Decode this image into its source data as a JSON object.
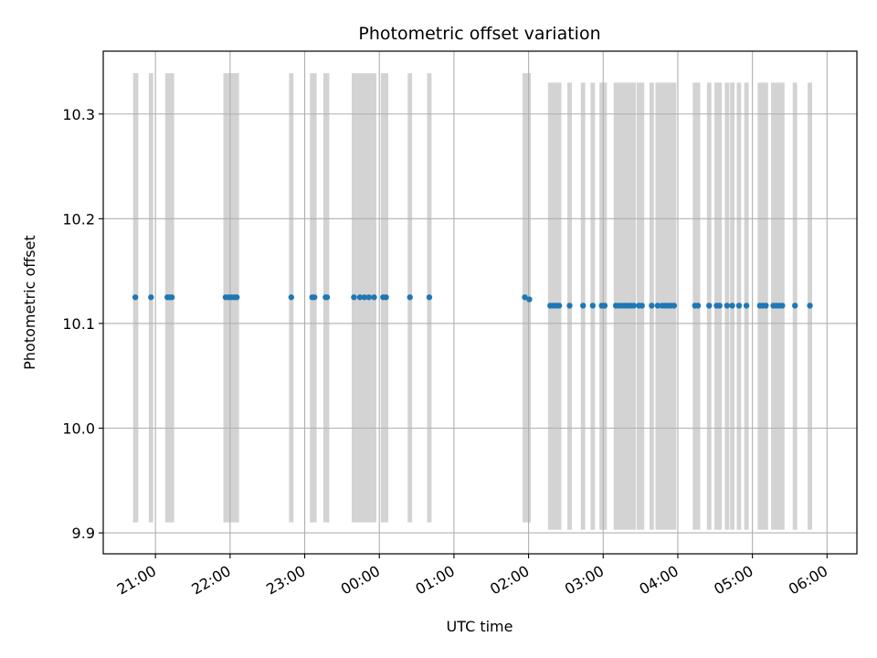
{
  "chart_data": {
    "type": "scatter",
    "title": "Photometric offset variation",
    "xlabel": "UTC time",
    "ylabel": "Photometric offset",
    "x_unit": "hours since 20:00 UTC",
    "xlim": [
      0.3,
      10.4
    ],
    "ylim": [
      9.88,
      10.36
    ],
    "grid": true,
    "x_ticks": [
      {
        "value": 1,
        "label": "21:00"
      },
      {
        "value": 2,
        "label": "22:00"
      },
      {
        "value": 3,
        "label": "23:00"
      },
      {
        "value": 4,
        "label": "00:00"
      },
      {
        "value": 5,
        "label": "01:00"
      },
      {
        "value": 6,
        "label": "02:00"
      },
      {
        "value": 7,
        "label": "03:00"
      },
      {
        "value": 8,
        "label": "04:00"
      },
      {
        "value": 9,
        "label": "05:00"
      },
      {
        "value": 10,
        "label": "06:00"
      }
    ],
    "y_ticks": [
      {
        "value": 9.9,
        "label": "9.9"
      },
      {
        "value": 10.0,
        "label": "10.0"
      },
      {
        "value": 10.1,
        "label": "10.1"
      },
      {
        "value": 10.2,
        "label": "10.2"
      },
      {
        "value": 10.3,
        "label": "10.3"
      }
    ],
    "point_color": "#1f77b4",
    "band_color": "#d3d3d3",
    "points": [
      {
        "x": 0.73,
        "y": 10.125
      },
      {
        "x": 0.94,
        "y": 10.125
      },
      {
        "x": 1.16,
        "y": 10.125
      },
      {
        "x": 1.19,
        "y": 10.125
      },
      {
        "x": 1.22,
        "y": 10.125
      },
      {
        "x": 1.94,
        "y": 10.125
      },
      {
        "x": 1.98,
        "y": 10.125
      },
      {
        "x": 2.02,
        "y": 10.125
      },
      {
        "x": 2.06,
        "y": 10.125
      },
      {
        "x": 2.09,
        "y": 10.125
      },
      {
        "x": 2.82,
        "y": 10.125
      },
      {
        "x": 3.1,
        "y": 10.125
      },
      {
        "x": 3.13,
        "y": 10.125
      },
      {
        "x": 3.28,
        "y": 10.125
      },
      {
        "x": 3.3,
        "y": 10.125
      },
      {
        "x": 3.66,
        "y": 10.125
      },
      {
        "x": 3.74,
        "y": 10.125
      },
      {
        "x": 3.8,
        "y": 10.125
      },
      {
        "x": 3.86,
        "y": 10.125
      },
      {
        "x": 3.93,
        "y": 10.125
      },
      {
        "x": 4.05,
        "y": 10.125
      },
      {
        "x": 4.09,
        "y": 10.125
      },
      {
        "x": 4.41,
        "y": 10.125
      },
      {
        "x": 4.67,
        "y": 10.125
      },
      {
        "x": 5.95,
        "y": 10.125
      },
      {
        "x": 6.01,
        "y": 10.123
      },
      {
        "x": 6.29,
        "y": 10.117
      },
      {
        "x": 6.33,
        "y": 10.117
      },
      {
        "x": 6.37,
        "y": 10.117
      },
      {
        "x": 6.41,
        "y": 10.117
      },
      {
        "x": 6.55,
        "y": 10.117
      },
      {
        "x": 6.73,
        "y": 10.117
      },
      {
        "x": 6.86,
        "y": 10.117
      },
      {
        "x": 6.98,
        "y": 10.117
      },
      {
        "x": 7.02,
        "y": 10.117
      },
      {
        "x": 7.17,
        "y": 10.117
      },
      {
        "x": 7.21,
        "y": 10.117
      },
      {
        "x": 7.25,
        "y": 10.117
      },
      {
        "x": 7.29,
        "y": 10.117
      },
      {
        "x": 7.33,
        "y": 10.117
      },
      {
        "x": 7.37,
        "y": 10.117
      },
      {
        "x": 7.41,
        "y": 10.117
      },
      {
        "x": 7.48,
        "y": 10.117
      },
      {
        "x": 7.52,
        "y": 10.117
      },
      {
        "x": 7.65,
        "y": 10.117
      },
      {
        "x": 7.73,
        "y": 10.117
      },
      {
        "x": 7.79,
        "y": 10.117
      },
      {
        "x": 7.83,
        "y": 10.117
      },
      {
        "x": 7.87,
        "y": 10.117
      },
      {
        "x": 7.91,
        "y": 10.117
      },
      {
        "x": 7.95,
        "y": 10.117
      },
      {
        "x": 8.23,
        "y": 10.117
      },
      {
        "x": 8.27,
        "y": 10.117
      },
      {
        "x": 8.42,
        "y": 10.117
      },
      {
        "x": 8.52,
        "y": 10.117
      },
      {
        "x": 8.56,
        "y": 10.117
      },
      {
        "x": 8.66,
        "y": 10.117
      },
      {
        "x": 8.73,
        "y": 10.117
      },
      {
        "x": 8.82,
        "y": 10.117
      },
      {
        "x": 8.92,
        "y": 10.117
      },
      {
        "x": 9.1,
        "y": 10.117
      },
      {
        "x": 9.14,
        "y": 10.117
      },
      {
        "x": 9.18,
        "y": 10.117
      },
      {
        "x": 9.28,
        "y": 10.117
      },
      {
        "x": 9.32,
        "y": 10.117
      },
      {
        "x": 9.36,
        "y": 10.117
      },
      {
        "x": 9.4,
        "y": 10.117
      },
      {
        "x": 9.57,
        "y": 10.117
      },
      {
        "x": 9.77,
        "y": 10.117
      }
    ],
    "bands": [
      {
        "x0": 0.7,
        "x1": 0.77,
        "y0": 9.91,
        "y1": 10.339
      },
      {
        "x0": 0.91,
        "x1": 0.97,
        "y0": 9.91,
        "y1": 10.339
      },
      {
        "x0": 1.13,
        "x1": 1.25,
        "y0": 9.91,
        "y1": 10.339
      },
      {
        "x0": 1.91,
        "x1": 2.12,
        "y0": 9.91,
        "y1": 10.339
      },
      {
        "x0": 2.79,
        "x1": 2.85,
        "y0": 9.91,
        "y1": 10.339
      },
      {
        "x0": 3.07,
        "x1": 3.16,
        "y0": 9.91,
        "y1": 10.339
      },
      {
        "x0": 3.25,
        "x1": 3.33,
        "y0": 9.91,
        "y1": 10.339
      },
      {
        "x0": 3.63,
        "x1": 3.96,
        "y0": 9.91,
        "y1": 10.339
      },
      {
        "x0": 4.02,
        "x1": 4.12,
        "y0": 9.91,
        "y1": 10.339
      },
      {
        "x0": 4.38,
        "x1": 4.44,
        "y0": 9.91,
        "y1": 10.339
      },
      {
        "x0": 4.64,
        "x1": 4.7,
        "y0": 9.91,
        "y1": 10.339
      },
      {
        "x0": 5.92,
        "x1": 6.03,
        "y0": 9.91,
        "y1": 10.339
      },
      {
        "x0": 6.26,
        "x1": 6.44,
        "y0": 9.903,
        "y1": 10.33
      },
      {
        "x0": 6.52,
        "x1": 6.58,
        "y0": 9.903,
        "y1": 10.33
      },
      {
        "x0": 6.7,
        "x1": 6.76,
        "y0": 9.903,
        "y1": 10.33
      },
      {
        "x0": 6.83,
        "x1": 6.89,
        "y0": 9.903,
        "y1": 10.33
      },
      {
        "x0": 6.95,
        "x1": 7.05,
        "y0": 9.903,
        "y1": 10.33
      },
      {
        "x0": 7.14,
        "x1": 7.44,
        "y0": 9.903,
        "y1": 10.33
      },
      {
        "x0": 7.45,
        "x1": 7.55,
        "y0": 9.903,
        "y1": 10.33
      },
      {
        "x0": 7.62,
        "x1": 7.68,
        "y0": 9.903,
        "y1": 10.33
      },
      {
        "x0": 7.7,
        "x1": 7.98,
        "y0": 9.903,
        "y1": 10.33
      },
      {
        "x0": 8.2,
        "x1": 8.3,
        "y0": 9.903,
        "y1": 10.33
      },
      {
        "x0": 8.39,
        "x1": 8.45,
        "y0": 9.903,
        "y1": 10.33
      },
      {
        "x0": 8.49,
        "x1": 8.59,
        "y0": 9.903,
        "y1": 10.33
      },
      {
        "x0": 8.63,
        "x1": 8.69,
        "y0": 9.903,
        "y1": 10.33
      },
      {
        "x0": 8.7,
        "x1": 8.76,
        "y0": 9.903,
        "y1": 10.33
      },
      {
        "x0": 8.79,
        "x1": 8.85,
        "y0": 9.903,
        "y1": 10.33
      },
      {
        "x0": 8.89,
        "x1": 8.95,
        "y0": 9.903,
        "y1": 10.33
      },
      {
        "x0": 9.07,
        "x1": 9.21,
        "y0": 9.903,
        "y1": 10.33
      },
      {
        "x0": 9.25,
        "x1": 9.43,
        "y0": 9.903,
        "y1": 10.33
      },
      {
        "x0": 9.54,
        "x1": 9.6,
        "y0": 9.903,
        "y1": 10.33
      },
      {
        "x0": 9.74,
        "x1": 9.8,
        "y0": 9.903,
        "y1": 10.33
      }
    ]
  }
}
